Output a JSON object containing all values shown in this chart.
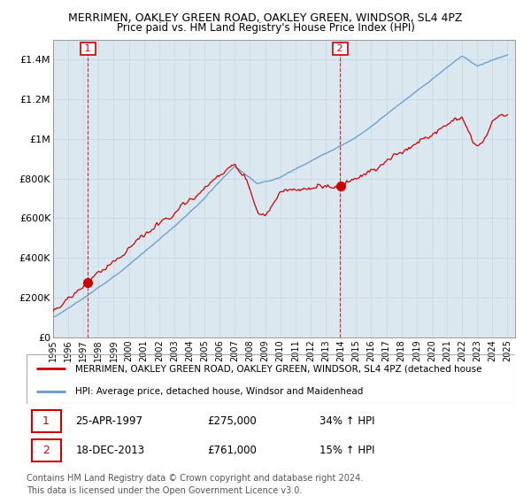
{
  "title": "MERRIMEN, OAKLEY GREEN ROAD, OAKLEY GREEN, WINDSOR, SL4 4PZ",
  "subtitle": "Price paid vs. HM Land Registry's House Price Index (HPI)",
  "sale1_date": "25-APR-1997",
  "sale1_price": 275000,
  "sale1_year": 1997.29,
  "sale1_pct": "34% ↑ HPI",
  "sale2_date": "18-DEC-2013",
  "sale2_price": 761000,
  "sale2_year": 2013.96,
  "sale2_pct": "15% ↑ HPI",
  "legend_line1": "MERRIMEN, OAKLEY GREEN ROAD, OAKLEY GREEN, WINDSOR, SL4 4PZ (detached house",
  "legend_line2": "HPI: Average price, detached house, Windsor and Maidenhead",
  "footer": "Contains HM Land Registry data © Crown copyright and database right 2024.\nThis data is licensed under the Open Government Licence v3.0.",
  "property_color": "#cc0000",
  "hpi_color": "#6699cc",
  "vline_color": "#cc0000",
  "grid_color": "#c8d8e8",
  "bg_color": "#dce8f0",
  "ylim": [
    0,
    1500000
  ],
  "xlim": [
    1995,
    2025.5
  ],
  "yticks": [
    0,
    200000,
    400000,
    600000,
    800000,
    1000000,
    1200000,
    1400000
  ],
  "ytick_labels": [
    "£0",
    "£200K",
    "£400K",
    "£600K",
    "£800K",
    "£1M",
    "£1.2M",
    "£1.4M"
  ]
}
